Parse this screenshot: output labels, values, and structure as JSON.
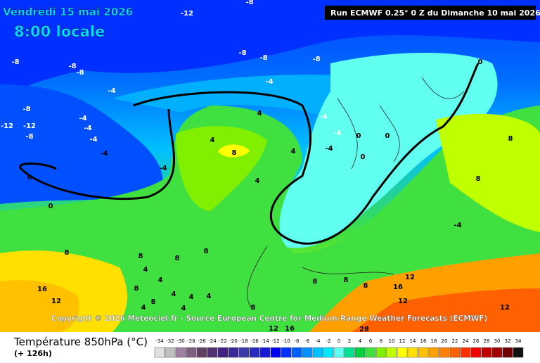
{
  "header": {
    "date": "Vendredi 15 mai 2026",
    "time": "8:00 locale",
    "run": "Run ECMWF 0.25° 0 Z du Dimanche 10 mai 2026"
  },
  "copyright": "Copyright © 2026 Meteociel.fr - Source European Centre for Medium-Range Weather Forecasts (ECMWF)",
  "footer": {
    "title": "Température 850hPa (°C)",
    "lead": "(+ 126h)"
  },
  "contour_labels": [
    -8,
    -12,
    -8,
    -8,
    -8,
    -8,
    -8,
    -8,
    -4,
    -4,
    -8,
    -12,
    -12,
    -8,
    -4,
    -4,
    -4,
    -4,
    -4,
    4,
    4,
    8,
    -4,
    -4,
    -4,
    0,
    0,
    0,
    0,
    0,
    4,
    4,
    0,
    8,
    8,
    -4,
    8,
    8,
    4,
    8,
    8,
    4,
    8,
    4,
    4,
    4,
    4,
    8,
    4,
    8,
    8,
    8,
    8,
    12,
    16,
    16,
    12,
    12,
    12,
    12,
    16,
    28
  ],
  "scale": {
    "values": [
      -34,
      -32,
      -30,
      -28,
      -26,
      -24,
      -22,
      -20,
      -18,
      -16,
      -14,
      -12,
      -10,
      -8,
      -6,
      -4,
      -2,
      0,
      2,
      4,
      6,
      8,
      10,
      12,
      14,
      16,
      18,
      20,
      22,
      24,
      26,
      28,
      30,
      32,
      34
    ],
    "colors": [
      "#e0e0e0",
      "#c0c0c0",
      "#a080a0",
      "#806080",
      "#604060",
      "#503070",
      "#402080",
      "#3c2896",
      "#3a3aa8",
      "#2a2ac0",
      "#1818d8",
      "#0000f0",
      "#0030ff",
      "#0060ff",
      "#0090ff",
      "#00c0ff",
      "#00e8ff",
      "#60fff0",
      "#00e090",
      "#00d040",
      "#40e040",
      "#80f000",
      "#c0ff00",
      "#ffff00",
      "#ffe000",
      "#ffc000",
      "#ffa000",
      "#ff8000",
      "#ff6000",
      "#ff3000",
      "#f00000",
      "#c00000",
      "#a00000",
      "#700000",
      "#101010"
    ]
  }
}
